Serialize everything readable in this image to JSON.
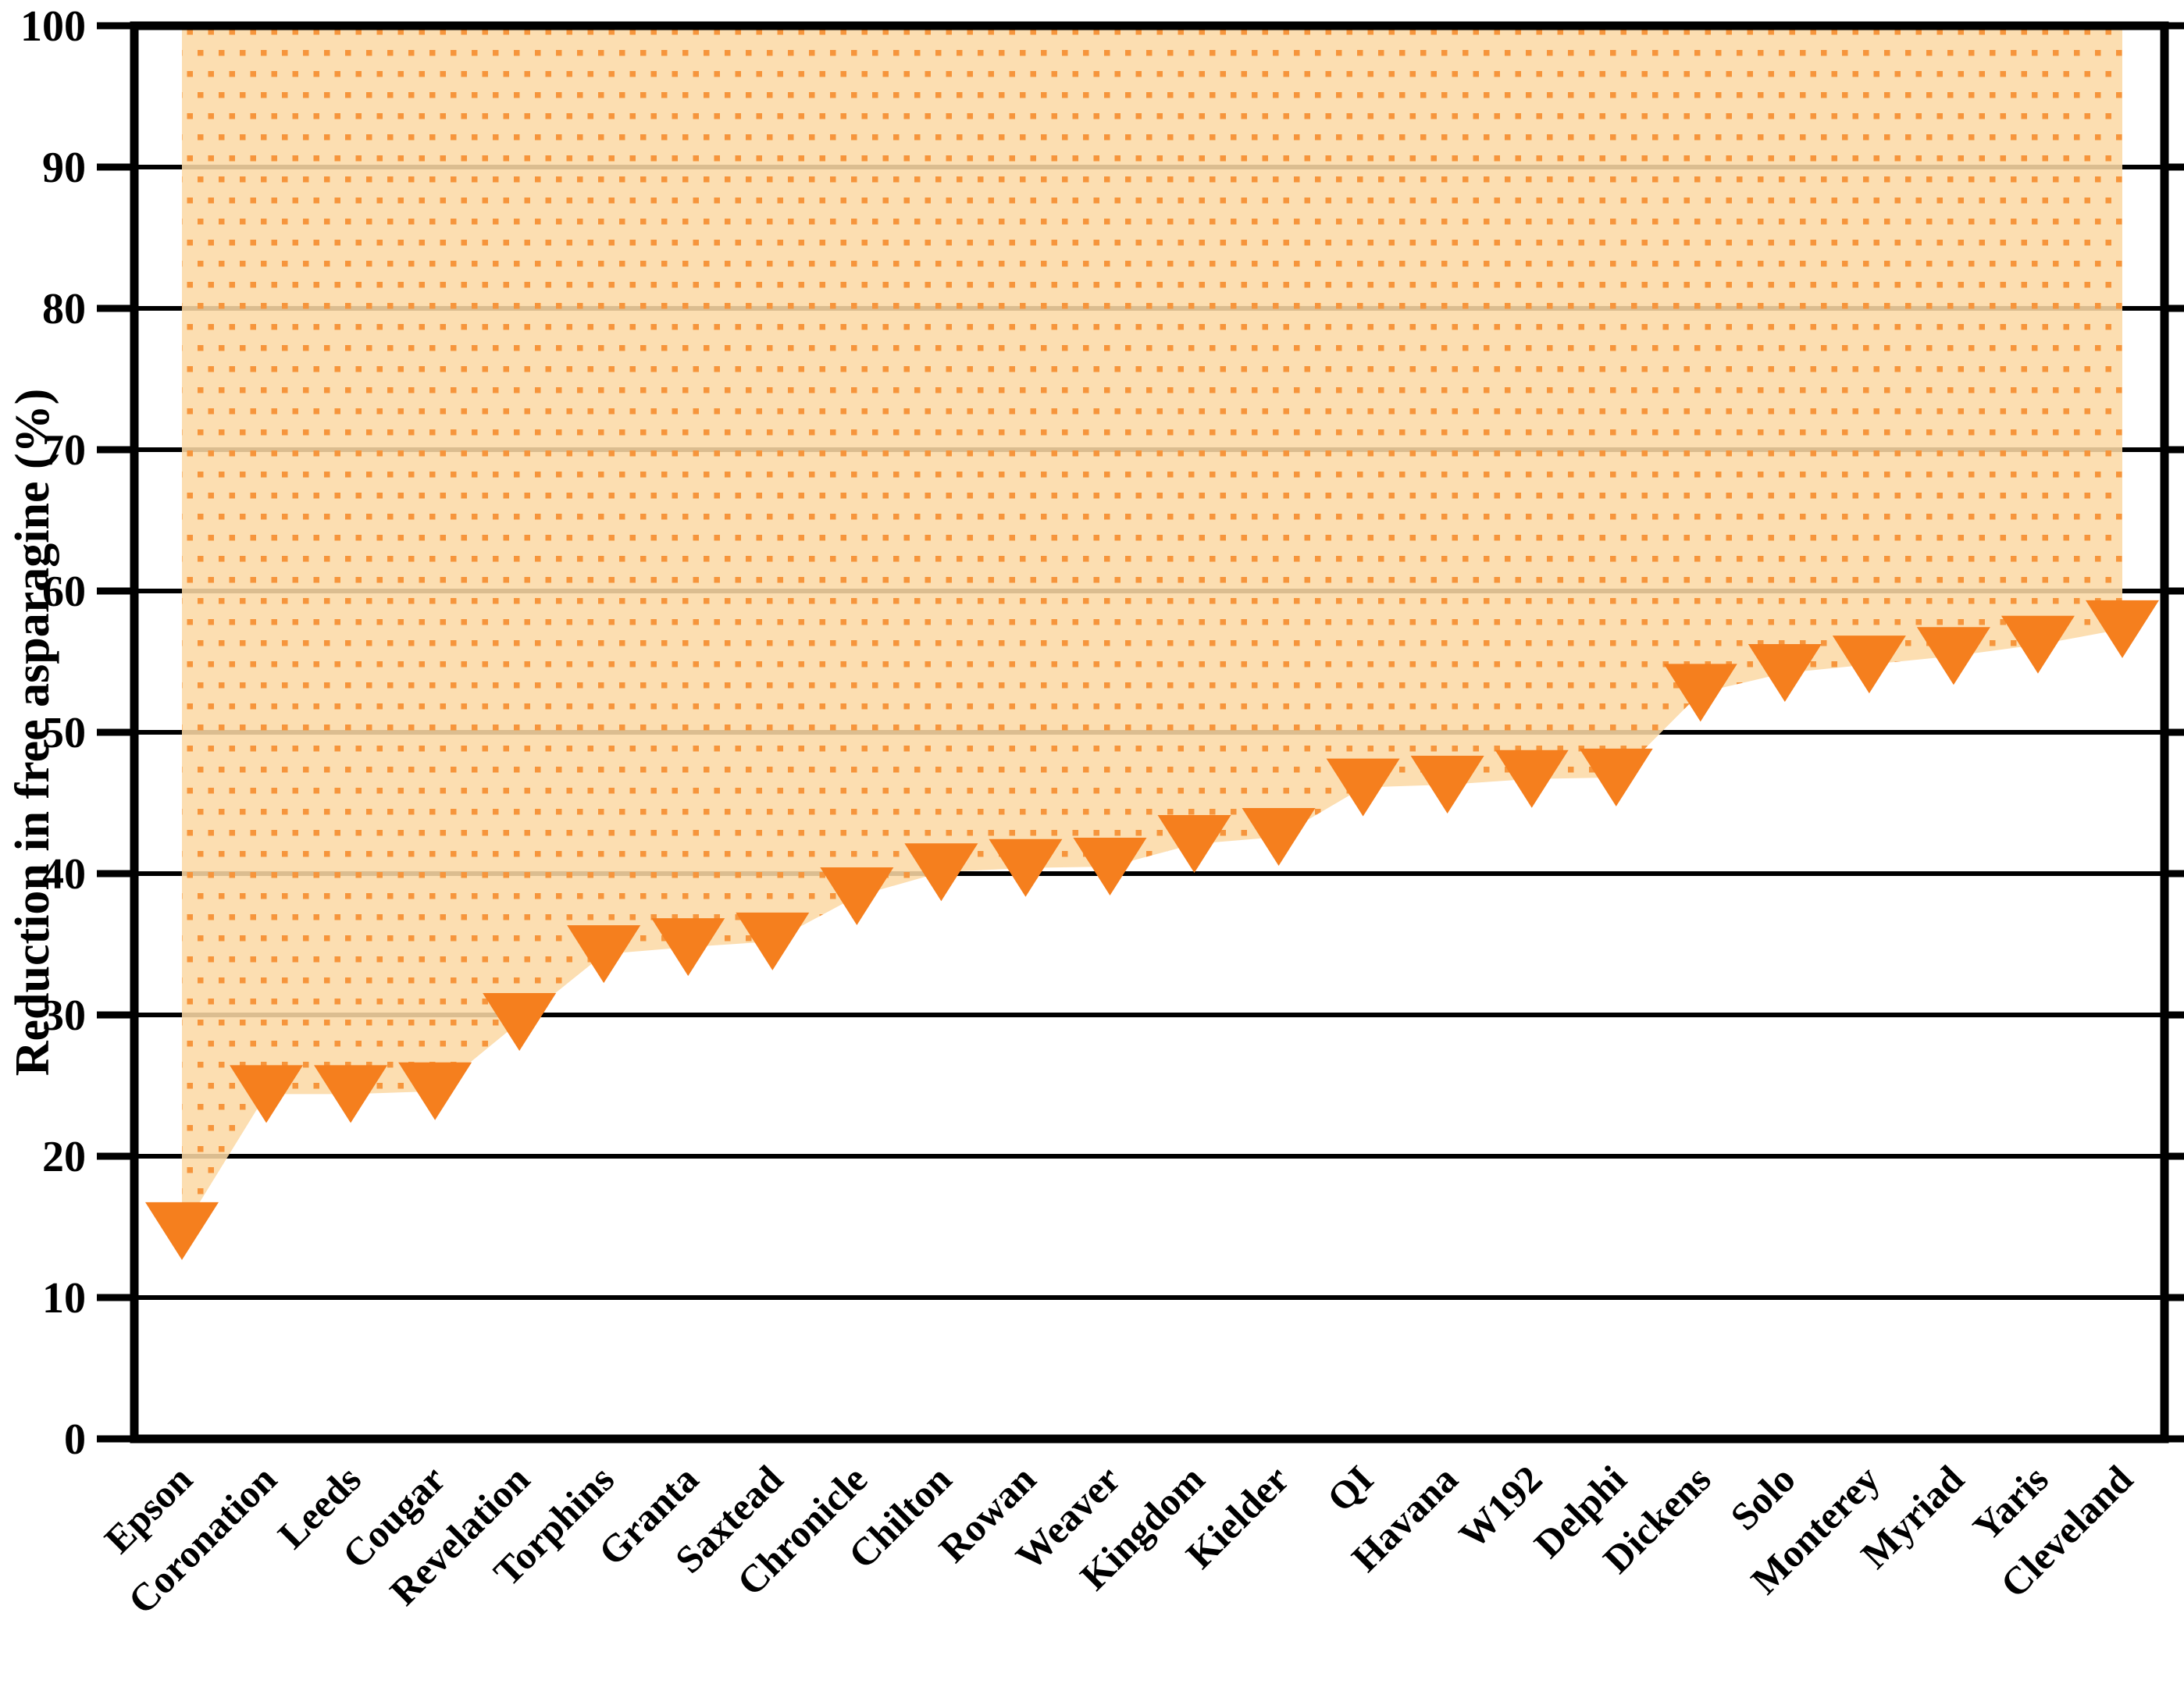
{
  "chart_data": {
    "type": "scatter-area",
    "title": "",
    "xlabel": "",
    "ylabel": "Reduction in free asparagine (%)",
    "ylim": [
      0,
      100
    ],
    "y_ticks": [
      0,
      10,
      20,
      30,
      40,
      50,
      60,
      70,
      80,
      90,
      100
    ],
    "grid": "horizontal",
    "legend_position": "none",
    "marker": "triangle-down",
    "fill_region": "between data line and 100%",
    "categories": [
      "Epson",
      "Coronation",
      "Leeds",
      "Cougar",
      "Revelation",
      "Torphins",
      "Granta",
      "Saxtead",
      "Chronicle",
      "Chilton",
      "Rowan",
      "Weaver",
      "Kingdom",
      "Kielder",
      "QI",
      "Havana",
      "W192",
      "Delphi",
      "Dickens",
      "Solo",
      "Monterey",
      "Myriad",
      "Yaris",
      "Cleveland"
    ],
    "values": [
      14.7,
      24.4,
      24.4,
      24.6,
      29.5,
      34.3,
      34.8,
      35.2,
      38.4,
      40.1,
      40.4,
      40.5,
      42.1,
      42.6,
      46.1,
      46.3,
      46.7,
      46.8,
      52.8,
      54.2,
      54.8,
      55.4,
      56.2,
      57.3
    ],
    "colors": {
      "marker": "#F57F1E",
      "fill_background": "#FCD9A6",
      "fill_dots": "#F6953C",
      "gridline": "#000000",
      "axis": "#000000",
      "text": "#000000"
    }
  }
}
